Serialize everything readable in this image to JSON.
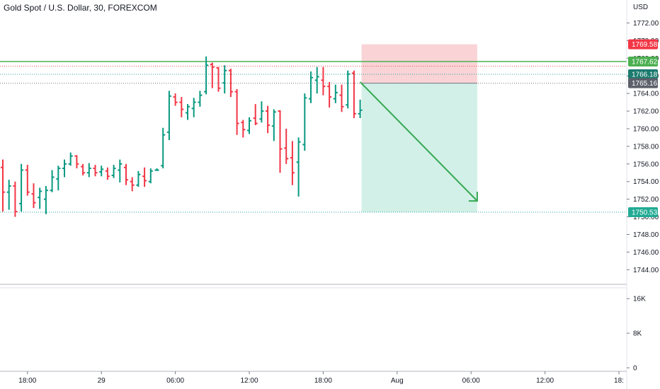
{
  "header": {
    "title": "Gold Spot / U.S. Dollar, 30, FOREXCOM",
    "currency": "USD"
  },
  "chart_data": {
    "type": "bar",
    "style": "ohlc",
    "symbol": "XAUUSD",
    "interval": "30",
    "y_axis": {
      "range": [
        1742.5,
        1773.0
      ],
      "ticks": [
        1772.0,
        1770.0,
        1768.0,
        1766.0,
        1764.0,
        1762.0,
        1760.0,
        1758.0,
        1756.0,
        1754.0,
        1752.0,
        1750.0,
        1748.0,
        1746.0,
        1744.0
      ],
      "tick_labels": [
        "1772.00",
        "1770.00",
        "1768.00",
        "1766.00",
        "1764.00",
        "1762.00",
        "1760.00",
        "1758.00",
        "1756.00",
        "1754.00",
        "1752.00",
        "1750.00",
        "1748.00",
        "1746.00",
        "1744.00"
      ]
    },
    "volume_axis": {
      "range": [
        0,
        18000
      ],
      "ticks": [
        0,
        8000,
        16000
      ],
      "tick_labels": [
        "0",
        "8K",
        "16K"
      ]
    },
    "x_axis": {
      "tick_labels": [
        "18:00",
        "29",
        "06:00",
        "12:00",
        "18:00",
        "Aug",
        "06:00",
        "12:00",
        "18:"
      ],
      "tick_bar_index": [
        4,
        16,
        28,
        40,
        52,
        64,
        76,
        88,
        100
      ]
    },
    "bar_count": 59,
    "ohlc": [
      [
        1755.6,
        1756.5,
        1750.6,
        1752.8
      ],
      [
        1752.8,
        1754.2,
        1750.8,
        1753.5
      ],
      [
        1753.5,
        1754.0,
        1750.0,
        1750.6
      ],
      [
        1751.5,
        1756.0,
        1750.6,
        1755.3
      ],
      [
        1755.3,
        1755.9,
        1752.4,
        1752.8
      ],
      [
        1752.6,
        1753.8,
        1751.0,
        1751.6
      ],
      [
        1752.2,
        1753.3,
        1750.9,
        1752.9
      ],
      [
        1752.0,
        1753.5,
        1750.3,
        1753.0
      ],
      [
        1753.0,
        1755.3,
        1752.8,
        1754.5
      ],
      [
        1754.3,
        1755.8,
        1753.0,
        1755.5
      ],
      [
        1755.5,
        1756.5,
        1754.5,
        1756.0
      ],
      [
        1756.0,
        1757.3,
        1755.8,
        1756.9
      ],
      [
        1756.9,
        1757.0,
        1755.5,
        1756.0
      ],
      [
        1755.7,
        1756.0,
        1754.7,
        1755.0
      ],
      [
        1755.0,
        1756.1,
        1754.5,
        1755.5
      ],
      [
        1755.5,
        1755.9,
        1754.6,
        1755.0
      ],
      [
        1755.1,
        1755.8,
        1754.6,
        1755.4
      ],
      [
        1755.2,
        1755.6,
        1754.2,
        1754.6
      ],
      [
        1754.7,
        1755.9,
        1754.4,
        1755.5
      ],
      [
        1755.3,
        1756.5,
        1753.9,
        1756.0
      ],
      [
        1755.6,
        1756.0,
        1753.6,
        1754.2
      ],
      [
        1754.0,
        1754.5,
        1752.9,
        1753.6
      ],
      [
        1753.6,
        1755.2,
        1753.4,
        1754.8
      ],
      [
        1754.6,
        1755.6,
        1753.4,
        1754.1
      ],
      [
        1754.0,
        1755.5,
        1753.8,
        1755.2
      ],
      [
        1755.3,
        1755.5,
        1755.2,
        1755.3
      ],
      [
        1755.8,
        1760.1,
        1755.5,
        1759.3
      ],
      [
        1759.6,
        1764.3,
        1758.7,
        1763.7
      ],
      [
        1763.6,
        1764.0,
        1762.6,
        1763.0
      ],
      [
        1763.0,
        1763.6,
        1761.3,
        1762.2
      ],
      [
        1761.8,
        1762.8,
        1761.0,
        1762.5
      ],
      [
        1762.3,
        1763.5,
        1761.3,
        1763.0
      ],
      [
        1763.0,
        1764.3,
        1762.5,
        1763.8
      ],
      [
        1764.2,
        1768.2,
        1763.9,
        1767.2
      ],
      [
        1767.3,
        1767.5,
        1764.6,
        1767.0
      ],
      [
        1766.9,
        1767.0,
        1764.2,
        1764.6
      ],
      [
        1765.2,
        1767.2,
        1764.0,
        1766.6
      ],
      [
        1766.6,
        1766.8,
        1763.6,
        1764.2
      ],
      [
        1764.2,
        1764.5,
        1759.3,
        1760.6
      ],
      [
        1760.7,
        1761.0,
        1759.0,
        1759.9
      ],
      [
        1759.8,
        1761.3,
        1759.4,
        1760.9
      ],
      [
        1761.2,
        1762.8,
        1760.4,
        1760.6
      ],
      [
        1761.1,
        1763.1,
        1760.7,
        1762.0
      ],
      [
        1762.0,
        1762.6,
        1759.5,
        1760.4
      ],
      [
        1760.3,
        1762.2,
        1758.6,
        1761.9
      ],
      [
        1762.0,
        1762.1,
        1755.0,
        1757.7
      ],
      [
        1757.8,
        1760.0,
        1756.0,
        1756.6
      ],
      [
        1756.7,
        1758.6,
        1753.6,
        1755.0
      ],
      [
        1756.2,
        1759.0,
        1752.3,
        1758.5
      ],
      [
        1758.2,
        1764.0,
        1757.5,
        1763.5
      ],
      [
        1763.4,
        1766.5,
        1762.9,
        1765.8
      ],
      [
        1765.5,
        1767.0,
        1764.0,
        1765.9
      ],
      [
        1765.5,
        1767.0,
        1763.8,
        1764.8
      ],
      [
        1764.8,
        1765.3,
        1762.4,
        1763.6
      ],
      [
        1763.4,
        1765.0,
        1762.9,
        1764.1
      ],
      [
        1763.8,
        1765.0,
        1761.9,
        1762.5
      ],
      [
        1762.7,
        1766.6,
        1762.3,
        1766.2
      ],
      [
        1766.3,
        1766.6,
        1761.2,
        1761.7
      ],
      [
        1761.7,
        1763.3,
        1761.2,
        1762.1
      ]
    ],
    "trade_box": {
      "entry": 1765.16,
      "stop": 1769.58,
      "target": 1750.53,
      "start_bar": 58,
      "end_bar": 77
    },
    "arrow": {
      "from": [
        58,
        1765.3
      ],
      "to": [
        77,
        1751.8
      ]
    },
    "horizontal_line": {
      "price": 1767.62,
      "color": "#4caf50"
    },
    "dotted_lines": [
      {
        "price": 1767.1,
        "color": "#ef5350"
      },
      {
        "price": 1766.18,
        "color": "#26a69a"
      },
      {
        "price": 1765.16,
        "color": "#787b86"
      },
      {
        "price": 1750.53,
        "color": "#26a69a"
      }
    ],
    "price_labels": [
      {
        "label": "1769.58",
        "price": 1769.58,
        "color": "#f23645"
      },
      {
        "label": "1767.62",
        "price": 1767.62,
        "color": "#4caf50"
      },
      {
        "label": "1766.18",
        "price": 1766.18,
        "color": "#1b7a6e"
      },
      {
        "label": "1765.16",
        "price": 1765.16,
        "color": "#5d606b"
      },
      {
        "label": "1750.53",
        "price": 1750.53,
        "color": "#22ab94"
      }
    ],
    "colors": {
      "up": "#089981",
      "down": "#f23645",
      "stop_zone": "#f7c4c8",
      "target_zone": "#cdeee4",
      "arrow": "#36a853",
      "grid_line": "#e0e3eb",
      "pane_separator": "#b2b5be"
    }
  }
}
